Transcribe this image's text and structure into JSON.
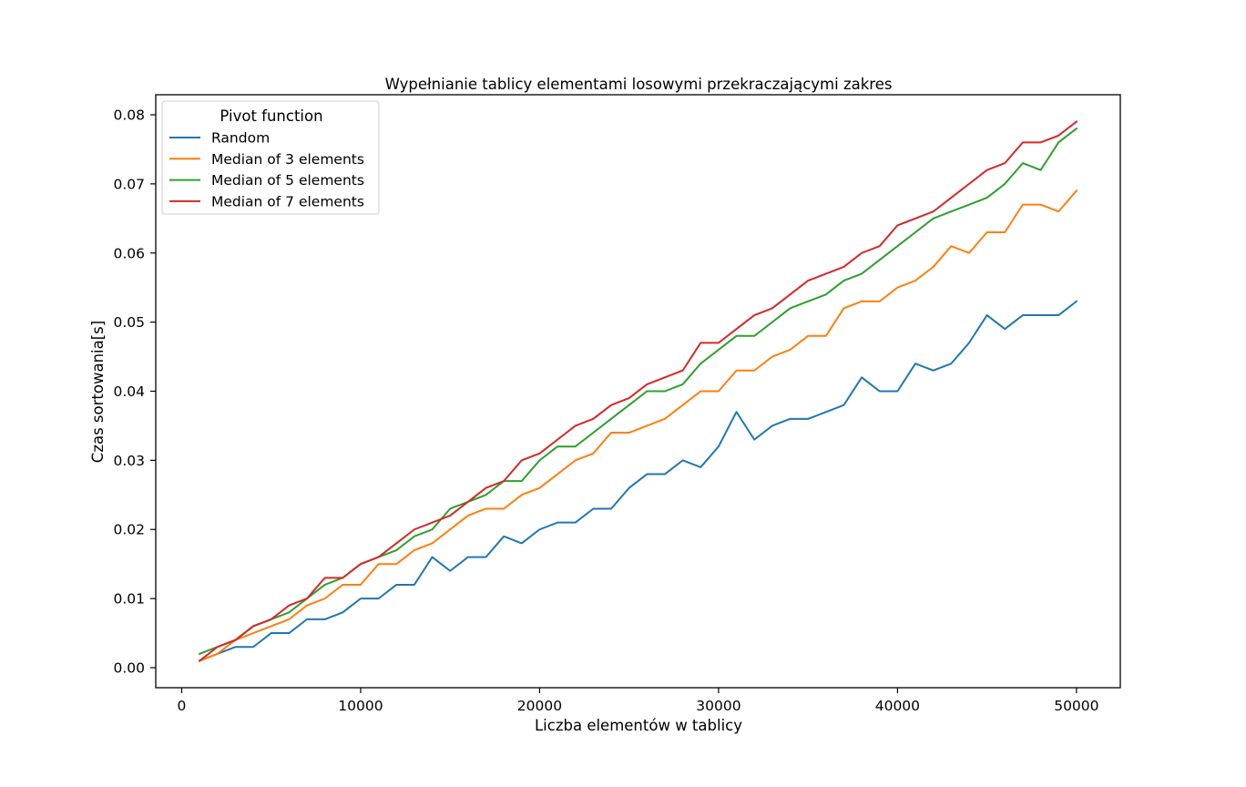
{
  "chart_data": {
    "type": "line",
    "title": "Wypełnianie tablicy elementami losowymi przekraczającymi zakres",
    "xlabel": "Liczba elementów w tablicy",
    "ylabel": "Czas sortowania[s]",
    "xlim": [
      -1450,
      52450
    ],
    "ylim": [
      -0.0029,
      0.0829
    ],
    "xticks": [
      0,
      10000,
      20000,
      30000,
      40000,
      50000
    ],
    "xtick_labels": [
      "0",
      "10000",
      "20000",
      "30000",
      "40000",
      "50000"
    ],
    "yticks": [
      0.0,
      0.01,
      0.02,
      0.03,
      0.04,
      0.05,
      0.06,
      0.07,
      0.08
    ],
    "ytick_labels": [
      "0.00",
      "0.01",
      "0.02",
      "0.03",
      "0.04",
      "0.05",
      "0.06",
      "0.07",
      "0.08"
    ],
    "grid": false,
    "legend_title": "Pivot function",
    "legend_position": "top-left",
    "x": [
      1000,
      2000,
      3000,
      4000,
      5000,
      6000,
      7000,
      8000,
      9000,
      10000,
      11000,
      12000,
      13000,
      14000,
      15000,
      16000,
      17000,
      18000,
      19000,
      20000,
      21000,
      22000,
      23000,
      24000,
      25000,
      26000,
      27000,
      28000,
      29000,
      30000,
      31000,
      32000,
      33000,
      34000,
      35000,
      36000,
      37000,
      38000,
      39000,
      40000,
      41000,
      42000,
      43000,
      44000,
      45000,
      46000,
      47000,
      48000,
      49000,
      50000
    ],
    "series": [
      {
        "name": "Random",
        "color": "#1f77b4",
        "values": [
          0.001,
          0.002,
          0.003,
          0.003,
          0.005,
          0.005,
          0.007,
          0.007,
          0.008,
          0.01,
          0.01,
          0.012,
          0.012,
          0.016,
          0.014,
          0.016,
          0.016,
          0.019,
          0.018,
          0.02,
          0.021,
          0.021,
          0.023,
          0.023,
          0.026,
          0.028,
          0.028,
          0.03,
          0.029,
          0.032,
          0.037,
          0.033,
          0.035,
          0.036,
          0.036,
          0.037,
          0.038,
          0.042,
          0.04,
          0.04,
          0.044,
          0.043,
          0.044,
          0.047,
          0.051,
          0.049,
          0.051,
          0.051,
          0.051,
          0.053
        ]
      },
      {
        "name": "Median of 3 elements",
        "color": "#ff7f0e",
        "values": [
          0.001,
          0.002,
          0.004,
          0.005,
          0.006,
          0.007,
          0.009,
          0.01,
          0.012,
          0.012,
          0.015,
          0.015,
          0.017,
          0.018,
          0.02,
          0.022,
          0.023,
          0.023,
          0.025,
          0.026,
          0.028,
          0.03,
          0.031,
          0.034,
          0.034,
          0.035,
          0.036,
          0.038,
          0.04,
          0.04,
          0.043,
          0.043,
          0.045,
          0.046,
          0.048,
          0.048,
          0.052,
          0.053,
          0.053,
          0.055,
          0.056,
          0.058,
          0.061,
          0.06,
          0.063,
          0.063,
          0.067,
          0.067,
          0.066,
          0.069
        ]
      },
      {
        "name": "Median of 5 elements",
        "color": "#2ca02c",
        "values": [
          0.002,
          0.003,
          0.004,
          0.006,
          0.007,
          0.008,
          0.01,
          0.012,
          0.013,
          0.015,
          0.016,
          0.017,
          0.019,
          0.02,
          0.023,
          0.024,
          0.025,
          0.027,
          0.027,
          0.03,
          0.032,
          0.032,
          0.034,
          0.036,
          0.038,
          0.04,
          0.04,
          0.041,
          0.044,
          0.046,
          0.048,
          0.048,
          0.05,
          0.052,
          0.053,
          0.054,
          0.056,
          0.057,
          0.059,
          0.061,
          0.063,
          0.065,
          0.066,
          0.067,
          0.068,
          0.07,
          0.073,
          0.072,
          0.076,
          0.078
        ]
      },
      {
        "name": "Median of 7 elements",
        "color": "#d62728",
        "values": [
          0.001,
          0.003,
          0.004,
          0.006,
          0.007,
          0.009,
          0.01,
          0.013,
          0.013,
          0.015,
          0.016,
          0.018,
          0.02,
          0.021,
          0.022,
          0.024,
          0.026,
          0.027,
          0.03,
          0.031,
          0.033,
          0.035,
          0.036,
          0.038,
          0.039,
          0.041,
          0.042,
          0.043,
          0.047,
          0.047,
          0.049,
          0.051,
          0.052,
          0.054,
          0.056,
          0.057,
          0.058,
          0.06,
          0.061,
          0.064,
          0.065,
          0.066,
          0.068,
          0.07,
          0.072,
          0.073,
          0.076,
          0.076,
          0.077,
          0.079
        ]
      }
    ]
  }
}
